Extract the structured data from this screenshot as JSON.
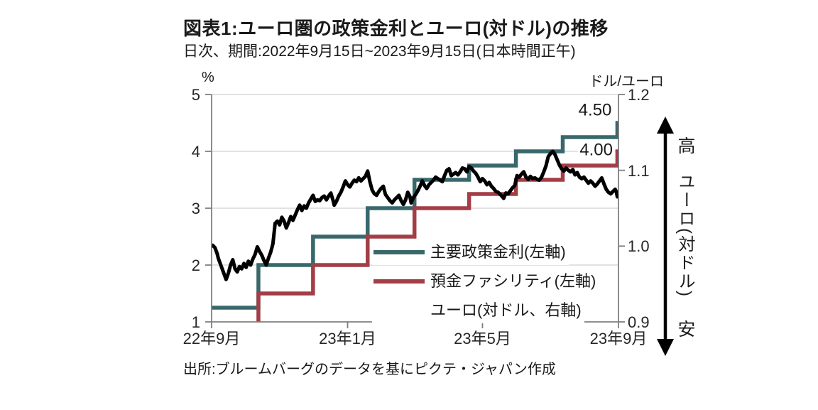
{
  "colors": {
    "policy_rate": "#38686C",
    "deposit_facility": "#A33E46",
    "euro": "#A8B4C8",
    "grid": "#D9D9D9",
    "axis": "#7F7F7F",
    "text": "#1a1a1a",
    "arrow": "#000000"
  },
  "right_scale_note": {
    "high": "高",
    "axis_name": "ユーロ(対ドル)",
    "low": "安"
  },
  "chart_data": {
    "type": "line",
    "title": "図表1:ユーロ圏の政策金利とユーロ(対ドル)の推移",
    "subtitle": "日次、期間:2022年9月15日~2023年9月15日(日本時間正午)",
    "source": "出所:ブルームバーグのデータを基にピクテ・ジャパン作成",
    "x_axis": {
      "start": "2022-09-15",
      "end": "2023-09-15",
      "days_total": 365,
      "tick_days": [
        0,
        122,
        243,
        365
      ],
      "tick_labels": [
        "22年9月",
        "23年1月",
        "23年5月",
        "23年9月"
      ]
    },
    "left_axis": {
      "title": "%",
      "min": 1,
      "max": 5,
      "tick_values": [
        5,
        4,
        3,
        2,
        1
      ],
      "tick_labels": [
        "5",
        "4",
        "3",
        "2",
        "1"
      ],
      "gridlines": [
        5,
        4,
        3,
        2
      ]
    },
    "right_axis": {
      "title": "ドル/ユーロ",
      "min": 0.9,
      "max": 1.2,
      "tick_values": [
        1.2,
        1.1,
        1.0,
        0.9
      ],
      "tick_labels": [
        "1.2",
        "1.1",
        "1.0",
        "0.9"
      ]
    },
    "legend_position": "inside-lower-right",
    "series": [
      {
        "name": "主要政策金利(左軸)",
        "key": "policy_rate",
        "axis": "left",
        "draw": "step",
        "points": [
          [
            0,
            1.25
          ],
          [
            42,
            2.0
          ],
          [
            91,
            2.5
          ],
          [
            140,
            3.0
          ],
          [
            182,
            3.5
          ],
          [
            231,
            3.75
          ],
          [
            273,
            4.0
          ],
          [
            315,
            4.25
          ],
          [
            364,
            4.5
          ],
          [
            365,
            4.5
          ]
        ]
      },
      {
        "name": "預金ファシリティ(左軸)",
        "key": "deposit_facility",
        "axis": "left",
        "draw": "step",
        "points": [
          [
            0,
            0.75
          ],
          [
            42,
            1.5
          ],
          [
            91,
            2.0
          ],
          [
            140,
            2.5
          ],
          [
            182,
            3.0
          ],
          [
            231,
            3.25
          ],
          [
            273,
            3.5
          ],
          [
            315,
            3.75
          ],
          [
            364,
            4.0
          ],
          [
            365,
            4.0
          ]
        ]
      },
      {
        "name": "ユーロ(対ドル、右軸)",
        "key": "euro_usd",
        "axis": "right",
        "draw": "line",
        "points": [
          [
            0,
            1.0
          ],
          [
            1,
            1.001
          ],
          [
            3,
            0.998
          ],
          [
            5,
            0.99
          ],
          [
            6,
            0.984
          ],
          [
            8,
            0.976
          ],
          [
            10,
            0.968
          ],
          [
            12,
            0.96
          ],
          [
            13,
            0.956
          ],
          [
            15,
            0.964
          ],
          [
            17,
            0.975
          ],
          [
            19,
            0.982
          ],
          [
            21,
            0.97
          ],
          [
            23,
            0.966
          ],
          [
            25,
            0.973
          ],
          [
            27,
            0.97
          ],
          [
            29,
            0.977
          ],
          [
            31,
            0.972
          ],
          [
            33,
            0.98
          ],
          [
            35,
            0.975
          ],
          [
            37,
            0.983
          ],
          [
            39,
            0.989
          ],
          [
            41,
            0.999
          ],
          [
            43,
            0.993
          ],
          [
            45,
            0.988
          ],
          [
            47,
            0.981
          ],
          [
            49,
            0.975
          ],
          [
            51,
            0.984
          ],
          [
            53,
            0.992
          ],
          [
            55,
            1.003
          ],
          [
            57,
            1.03
          ],
          [
            59,
            1.033
          ],
          [
            61,
            1.028
          ],
          [
            63,
            1.038
          ],
          [
            65,
            1.033
          ],
          [
            67,
            1.024
          ],
          [
            69,
            1.031
          ],
          [
            71,
            1.039
          ],
          [
            73,
            1.034
          ],
          [
            75,
            1.041
          ],
          [
            77,
            1.048
          ],
          [
            79,
            1.054
          ],
          [
            81,
            1.047
          ],
          [
            83,
            1.053
          ],
          [
            85,
            1.05
          ],
          [
            87,
            1.057
          ],
          [
            89,
            1.062
          ],
          [
            91,
            1.067
          ],
          [
            93,
            1.059
          ],
          [
            95,
            1.061
          ],
          [
            97,
            1.06
          ],
          [
            99,
            1.064
          ],
          [
            101,
            1.066
          ],
          [
            103,
            1.061
          ],
          [
            105,
            1.066
          ],
          [
            107,
            1.07
          ],
          [
            109,
            1.06
          ],
          [
            110,
            1.054
          ],
          [
            112,
            1.059
          ],
          [
            114,
            1.066
          ],
          [
            116,
            1.071
          ],
          [
            118,
            1.078
          ],
          [
            120,
            1.086
          ],
          [
            122,
            1.081
          ],
          [
            124,
            1.078
          ],
          [
            126,
            1.083
          ],
          [
            128,
            1.087
          ],
          [
            130,
            1.085
          ],
          [
            132,
            1.09
          ],
          [
            134,
            1.086
          ],
          [
            136,
            1.089
          ],
          [
            138,
            1.092
          ],
          [
            140,
            1.099
          ],
          [
            142,
            1.085
          ],
          [
            144,
            1.074
          ],
          [
            146,
            1.069
          ],
          [
            148,
            1.067
          ],
          [
            150,
            1.072
          ],
          [
            152,
            1.076
          ],
          [
            154,
            1.079
          ],
          [
            156,
            1.068
          ],
          [
            158,
            1.064
          ],
          [
            160,
            1.06
          ],
          [
            162,
            1.057
          ],
          [
            164,
            1.061
          ],
          [
            166,
            1.064
          ],
          [
            168,
            1.067
          ],
          [
            170,
            1.06
          ],
          [
            172,
            1.055
          ],
          [
            174,
            1.061
          ],
          [
            176,
            1.071
          ],
          [
            178,
            1.065
          ],
          [
            179,
            1.057
          ],
          [
            181,
            1.064
          ],
          [
            183,
            1.068
          ],
          [
            185,
            1.073
          ],
          [
            187,
            1.079
          ],
          [
            189,
            1.086
          ],
          [
            191,
            1.08
          ],
          [
            193,
            1.076
          ],
          [
            195,
            1.081
          ],
          [
            197,
            1.084
          ],
          [
            199,
            1.087
          ],
          [
            201,
            1.091
          ],
          [
            203,
            1.089
          ],
          [
            205,
            1.087
          ],
          [
            207,
            1.085
          ],
          [
            209,
            1.093
          ],
          [
            211,
            1.1
          ],
          [
            213,
            1.102
          ],
          [
            215,
            1.093
          ],
          [
            217,
            1.095
          ],
          [
            219,
            1.097
          ],
          [
            221,
            1.094
          ],
          [
            223,
            1.098
          ],
          [
            225,
            1.103
          ],
          [
            227,
            1.102
          ],
          [
            229,
            1.098
          ],
          [
            231,
            1.105
          ],
          [
            233,
            1.103
          ],
          [
            235,
            1.099
          ],
          [
            237,
            1.096
          ],
          [
            239,
            1.091
          ],
          [
            241,
            1.085
          ],
          [
            243,
            1.089
          ],
          [
            245,
            1.086
          ],
          [
            247,
            1.081
          ],
          [
            249,
            1.084
          ],
          [
            251,
            1.079
          ],
          [
            253,
            1.076
          ],
          [
            255,
            1.072
          ],
          [
            257,
            1.071
          ],
          [
            259,
            1.068
          ],
          [
            261,
            1.065
          ],
          [
            262,
            1.063
          ],
          [
            264,
            1.07
          ],
          [
            266,
            1.069
          ],
          [
            268,
            1.073
          ],
          [
            270,
            1.077
          ],
          [
            272,
            1.08
          ],
          [
            274,
            1.093
          ],
          [
            276,
            1.091
          ],
          [
            278,
            1.095
          ],
          [
            280,
            1.098
          ],
          [
            282,
            1.091
          ],
          [
            284,
            1.088
          ],
          [
            286,
            1.092
          ],
          [
            288,
            1.089
          ],
          [
            290,
            1.09
          ],
          [
            292,
            1.088
          ],
          [
            294,
            1.087
          ],
          [
            296,
            1.091
          ],
          [
            298,
            1.098
          ],
          [
            300,
            1.106
          ],
          [
            302,
            1.118
          ],
          [
            304,
            1.122
          ],
          [
            306,
            1.125
          ],
          [
            308,
            1.121
          ],
          [
            310,
            1.114
          ],
          [
            312,
            1.107
          ],
          [
            314,
            1.102
          ],
          [
            316,
            1.099
          ],
          [
            318,
            1.103
          ],
          [
            320,
            1.1
          ],
          [
            322,
            1.098
          ],
          [
            324,
            1.101
          ],
          [
            326,
            1.094
          ],
          [
            328,
            1.097
          ],
          [
            330,
            1.091
          ],
          [
            332,
            1.089
          ],
          [
            334,
            1.091
          ],
          [
            336,
            1.087
          ],
          [
            338,
            1.083
          ],
          [
            340,
            1.086
          ],
          [
            342,
            1.083
          ],
          [
            344,
            1.079
          ],
          [
            346,
            1.082
          ],
          [
            348,
            1.086
          ],
          [
            350,
            1.09
          ],
          [
            352,
            1.082
          ],
          [
            354,
            1.075
          ],
          [
            356,
            1.071
          ],
          [
            358,
            1.069
          ],
          [
            360,
            1.072
          ],
          [
            362,
            1.075
          ],
          [
            363,
            1.072
          ],
          [
            364,
            1.065
          ],
          [
            365,
            1.066
          ]
        ]
      }
    ],
    "annotations": [
      {
        "text": "4.50",
        "day": 344,
        "value": 4.72,
        "axis": "left"
      },
      {
        "text": "4.00",
        "day": 345,
        "value": 4.03,
        "axis": "left"
      }
    ]
  }
}
